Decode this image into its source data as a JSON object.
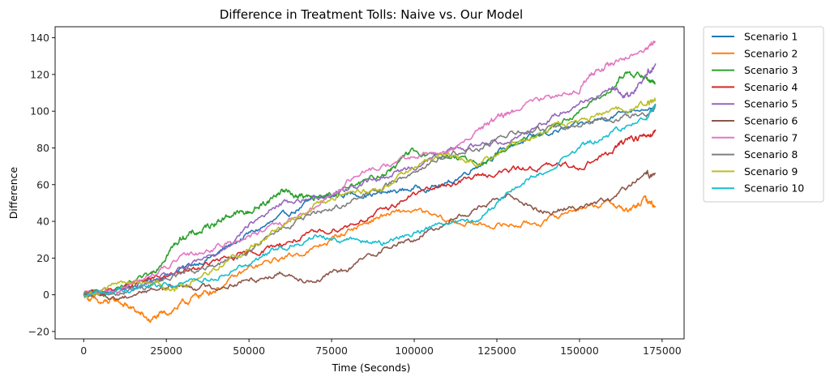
{
  "chart_data": {
    "type": "line",
    "title": "Difference in Treatment Tolls: Naive vs. Our Model",
    "xlabel": "Time (Seconds)",
    "ylabel": "Difference",
    "xlim": [
      -8650,
      181650
    ],
    "ylim": [
      -24,
      146
    ],
    "xticks": [
      0,
      25000,
      50000,
      75000,
      100000,
      125000,
      150000,
      175000
    ],
    "yticks": [
      -20,
      0,
      20,
      40,
      60,
      80,
      100,
      120,
      140
    ],
    "grid": false,
    "legend_placement": "outside-right-top",
    "series": [
      {
        "name": "Scenario 1",
        "color": "#1f77b4",
        "x": [
          0,
          10000,
          20000,
          30000,
          40000,
          50000,
          60000,
          70000,
          80000,
          90000,
          100000,
          110000,
          120000,
          130000,
          140000,
          150000,
          160000,
          173000
        ],
        "y": [
          0,
          2,
          8,
          14,
          22,
          33,
          42,
          52,
          55,
          55,
          58,
          60,
          72,
          82,
          88,
          92,
          98,
          104
        ]
      },
      {
        "name": "Scenario 2",
        "color": "#ff7f0e",
        "x": [
          0,
          5000,
          10000,
          15000,
          20000,
          25000,
          30000,
          35000,
          40000,
          50000,
          60000,
          70000,
          80000,
          90000,
          100000,
          110000,
          120000,
          130000,
          140000,
          150000,
          160000,
          165000,
          170000,
          173000
        ],
        "y": [
          0,
          -5,
          -3,
          -8,
          -14,
          -10,
          -5,
          0,
          3,
          14,
          20,
          25,
          35,
          43,
          46,
          40,
          38,
          38,
          40,
          48,
          50,
          45,
          52,
          48
        ]
      },
      {
        "name": "Scenario 3",
        "color": "#2ca02c",
        "x": [
          0,
          10000,
          20000,
          25000,
          30000,
          35000,
          40000,
          45000,
          50000,
          55000,
          60000,
          65000,
          70000,
          80000,
          90000,
          95000,
          100000,
          110000,
          120000,
          130000,
          140000,
          150000,
          160000,
          165000,
          170000,
          173000
        ],
        "y": [
          0,
          2,
          10,
          22,
          32,
          34,
          40,
          44,
          45,
          50,
          57,
          54,
          52,
          58,
          65,
          72,
          78,
          75,
          72,
          82,
          90,
          100,
          112,
          122,
          118,
          115
        ]
      },
      {
        "name": "Scenario 4",
        "color": "#d62728",
        "x": [
          0,
          10000,
          20000,
          30000,
          40000,
          50000,
          60000,
          70000,
          80000,
          90000,
          100000,
          110000,
          120000,
          130000,
          140000,
          150000,
          160000,
          165000,
          170000,
          173000
        ],
        "y": [
          0,
          3,
          8,
          12,
          18,
          22,
          28,
          33,
          38,
          45,
          55,
          60,
          65,
          68,
          70,
          70,
          78,
          86,
          86,
          90
        ]
      },
      {
        "name": "Scenario 5",
        "color": "#9467bd",
        "x": [
          0,
          10000,
          20000,
          30000,
          40000,
          50000,
          60000,
          70000,
          80000,
          90000,
          100000,
          110000,
          120000,
          130000,
          140000,
          150000,
          160000,
          165000,
          170000,
          173000
        ],
        "y": [
          0,
          2,
          6,
          14,
          22,
          38,
          50,
          53,
          58,
          64,
          70,
          78,
          82,
          85,
          95,
          105,
          112,
          108,
          120,
          126
        ]
      },
      {
        "name": "Scenario 6",
        "color": "#8c564b",
        "x": [
          0,
          10000,
          20000,
          30000,
          40000,
          50000,
          60000,
          70000,
          80000,
          90000,
          100000,
          110000,
          120000,
          130000,
          140000,
          150000,
          160000,
          170000,
          173000
        ],
        "y": [
          0,
          -2,
          3,
          5,
          4,
          8,
          12,
          8,
          14,
          25,
          30,
          40,
          48,
          54,
          45,
          48,
          52,
          66,
          66
        ]
      },
      {
        "name": "Scenario 7",
        "color": "#e377c2",
        "x": [
          0,
          10000,
          20000,
          30000,
          40000,
          50000,
          60000,
          70000,
          80000,
          90000,
          100000,
          110000,
          120000,
          125000,
          130000,
          140000,
          150000,
          155000,
          160000,
          170000,
          173000
        ],
        "y": [
          0,
          2,
          10,
          20,
          26,
          32,
          38,
          48,
          62,
          70,
          75,
          78,
          90,
          96,
          100,
          108,
          112,
          122,
          126,
          134,
          138
        ]
      },
      {
        "name": "Scenario 8",
        "color": "#7f7f7f",
        "x": [
          0,
          10000,
          20000,
          30000,
          40000,
          50000,
          60000,
          70000,
          80000,
          90000,
          100000,
          110000,
          120000,
          130000,
          140000,
          150000,
          160000,
          170000,
          173000
        ],
        "y": [
          0,
          1,
          5,
          12,
          15,
          24,
          36,
          44,
          50,
          58,
          68,
          76,
          80,
          88,
          90,
          92,
          96,
          98,
          102
        ]
      },
      {
        "name": "Scenario 9",
        "color": "#bcbd22",
        "x": [
          0,
          10000,
          20000,
          25000,
          30000,
          40000,
          50000,
          60000,
          70000,
          80000,
          90000,
          100000,
          110000,
          120000,
          130000,
          140000,
          150000,
          160000,
          170000,
          173000
        ],
        "y": [
          0,
          6,
          8,
          3,
          5,
          15,
          25,
          38,
          50,
          55,
          58,
          70,
          76,
          72,
          82,
          90,
          95,
          100,
          104,
          106
        ]
      },
      {
        "name": "Scenario 10",
        "color": "#17becf",
        "x": [
          0,
          10000,
          20000,
          30000,
          40000,
          50000,
          60000,
          70000,
          80000,
          90000,
          100000,
          110000,
          120000,
          130000,
          140000,
          150000,
          160000,
          170000,
          173000
        ],
        "y": [
          0,
          2,
          5,
          6,
          10,
          18,
          26,
          32,
          30,
          28,
          34,
          40,
          42,
          58,
          68,
          80,
          88,
          96,
          104
        ]
      }
    ]
  }
}
